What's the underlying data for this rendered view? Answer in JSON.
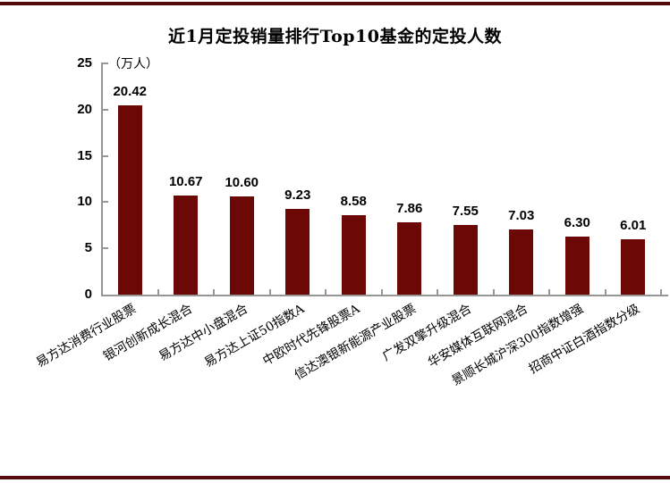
{
  "page": {
    "top_rule_color": "#550A0A",
    "bottom_rule_color": "#550A0A"
  },
  "chart_data": {
    "type": "bar",
    "title": "近1月定投销量排行Top10基金的定投人数",
    "unit_label": "（万人）",
    "categories": [
      "易方达消费行业股票",
      "银河创新成长混合",
      "易方达中小盘混合",
      "易方达上证50指数A",
      "中欧时代先锋股票A",
      "信达澳银新能源产业股票",
      "广发双擎升级混合",
      "华安媒体互联网混合",
      "景顺长城沪深300指数增强",
      "招商中证白酒指数分级"
    ],
    "values": [
      20.42,
      10.67,
      10.6,
      9.23,
      8.58,
      7.86,
      7.55,
      7.03,
      6.3,
      6.01
    ],
    "value_labels": [
      "20.42",
      "10.67",
      "10.60",
      "9.23",
      "8.58",
      "7.86",
      "7.55",
      "7.03",
      "6.30",
      "6.01"
    ],
    "ylim": [
      0,
      25
    ],
    "yticks": [
      0,
      5,
      10,
      15,
      20,
      25
    ],
    "xlabel": "",
    "ylabel": "（万人）",
    "grid": false,
    "legend": "none",
    "bar_color": "#6C0806",
    "axis_color": "#969696",
    "label_color": "#000000"
  }
}
